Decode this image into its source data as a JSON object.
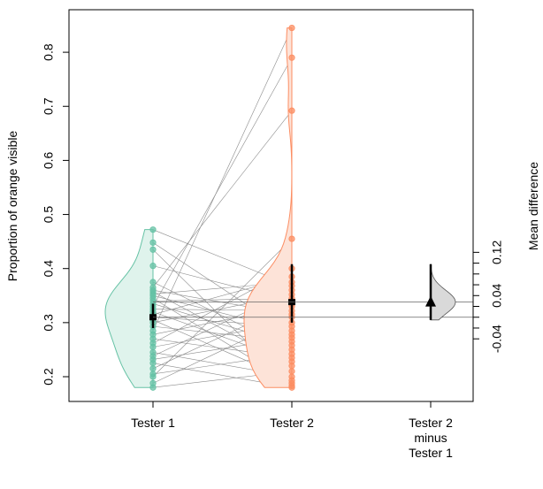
{
  "chart_data": {
    "type": "scatter",
    "title": "",
    "ylabel": "Proportion of orange visible",
    "y2label": "Mean difference",
    "ylim": [
      0.15,
      0.87
    ],
    "yticks": [
      0.2,
      0.3,
      0.4,
      0.5,
      0.6,
      0.7,
      0.8
    ],
    "y2ticks": [
      -0.04,
      0.04,
      0.12
    ],
    "y2minor": [
      -0.04,
      -0.02,
      0.0,
      0.02,
      0.04,
      0.06,
      0.08,
      0.1,
      0.12
    ],
    "categories": [
      "Tester 1",
      "Tester 2",
      "Tester 2\nminus\nTester 1"
    ],
    "colors": {
      "tester1": "#66c2a5",
      "tester1_fill": "#dff3ec",
      "tester2": "#fc8d62",
      "tester2_fill": "#fde3d8",
      "diff_fill": "#d9d9d9",
      "pair_line": "#8c8c8c"
    },
    "series": [
      {
        "name": "Tester 1",
        "mean": 0.31,
        "ci": [
          0.29,
          0.335
        ],
        "values": [
          0.472,
          0.448,
          0.435,
          0.405,
          0.375,
          0.365,
          0.36,
          0.357,
          0.353,
          0.35,
          0.345,
          0.34,
          0.335,
          0.33,
          0.325,
          0.32,
          0.315,
          0.31,
          0.305,
          0.3,
          0.293,
          0.285,
          0.278,
          0.27,
          0.262,
          0.255,
          0.245,
          0.238,
          0.232,
          0.225,
          0.215,
          0.205,
          0.2,
          0.188,
          0.18
        ]
      },
      {
        "name": "Tester 2",
        "mean": 0.338,
        "ci": [
          0.3,
          0.408
        ],
        "values": [
          0.845,
          0.79,
          0.692,
          0.455,
          0.4,
          0.385,
          0.375,
          0.368,
          0.36,
          0.352,
          0.345,
          0.34,
          0.335,
          0.33,
          0.322,
          0.315,
          0.31,
          0.3,
          0.293,
          0.285,
          0.278,
          0.272,
          0.265,
          0.258,
          0.25,
          0.242,
          0.235,
          0.228,
          0.22,
          0.21,
          0.2,
          0.193,
          0.188,
          0.183,
          0.18
        ]
      }
    ],
    "difference": {
      "mean": 0.028,
      "ci": [
        -0.005,
        0.098
      ]
    }
  }
}
